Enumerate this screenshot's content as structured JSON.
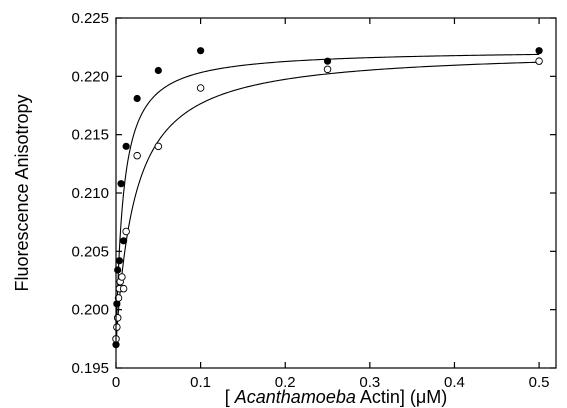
{
  "chart_data": {
    "type": "scatter",
    "title": "",
    "xlabel_parts": [
      "[ ",
      "Acanthamoeba",
      "  Actin] (μM)"
    ],
    "ylabel": "Fluorescence  Anisotropy",
    "xlim": [
      0,
      0.52
    ],
    "ylim": [
      0.195,
      0.225
    ],
    "x_ticks": [
      0,
      0.1,
      0.2,
      0.3,
      0.4,
      0.5
    ],
    "x_tick_labels": [
      "0",
      "0.1",
      "0.2",
      "0.3",
      "0.4",
      "0.5"
    ],
    "y_ticks": [
      0.195,
      0.2,
      0.205,
      0.21,
      0.215,
      0.22,
      0.225
    ],
    "y_tick_labels": [
      "0.195",
      "0.200",
      "0.205",
      "0.210",
      "0.215",
      "0.220",
      "0.225"
    ],
    "grid": false,
    "series": [
      {
        "marker": "filled-circle",
        "color": "#000000",
        "points": [
          [
            0,
            0.197
          ],
          [
            0.001,
            0.2005
          ],
          [
            0.002,
            0.2034
          ],
          [
            0.004,
            0.2042
          ],
          [
            0.006,
            0.2108
          ],
          [
            0.009,
            0.2059
          ],
          [
            0.012,
            0.214
          ],
          [
            0.025,
            0.2181
          ],
          [
            0.05,
            0.2205
          ],
          [
            0.1,
            0.2222
          ],
          [
            0.25,
            0.2213
          ],
          [
            0.5,
            0.2222
          ]
        ],
        "fit": {
          "a0": 0.197,
          "amp": 0.0253,
          "k": 0.0085
        }
      },
      {
        "marker": "open-circle",
        "color": "#000000",
        "points": [
          [
            0,
            0.1975
          ],
          [
            0.001,
            0.1985
          ],
          [
            0.002,
            0.1993
          ],
          [
            0.003,
            0.201
          ],
          [
            0.004,
            0.2018
          ],
          [
            0.005,
            0.2024
          ],
          [
            0.007,
            0.2028
          ],
          [
            0.009,
            0.2018
          ],
          [
            0.012,
            0.2067
          ],
          [
            0.025,
            0.2132
          ],
          [
            0.05,
            0.214
          ],
          [
            0.1,
            0.219
          ],
          [
            0.25,
            0.2206
          ],
          [
            0.5,
            0.2213
          ]
        ],
        "fit": {
          "a0": 0.197,
          "amp": 0.0253,
          "k": 0.0225
        }
      }
    ]
  }
}
